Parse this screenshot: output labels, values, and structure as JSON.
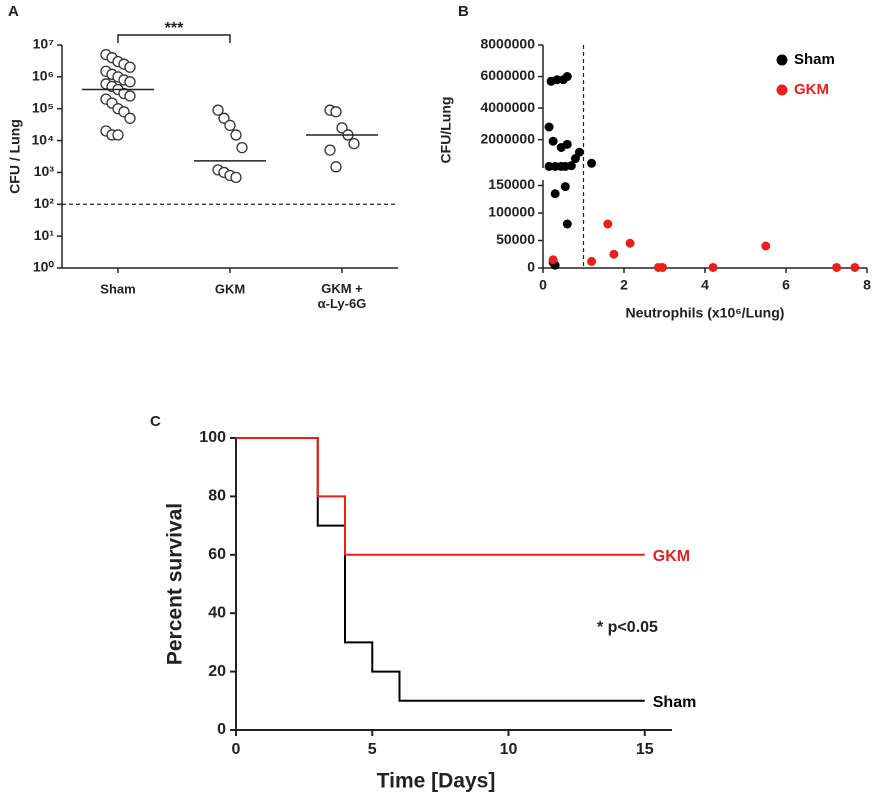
{
  "chart_data": [
    {
      "type": "dot_plot",
      "panel_label": "A",
      "y_label": "CFU / Lung",
      "log_y": true,
      "categories": [
        "Sham",
        "GKM",
        "GKM +\nα-Ly-6G"
      ],
      "groups": [
        [
          5000000,
          4000000,
          3000000,
          2500000,
          2000000,
          1500000,
          1200000,
          1000000,
          800000,
          700000,
          600000,
          500000,
          400000,
          300000,
          250000,
          200000,
          150000,
          100000,
          80000,
          50000,
          20000,
          15000,
          15000
        ],
        [
          90000,
          50000,
          30000,
          15000,
          6000,
          1200,
          1000,
          800,
          700
        ],
        [
          90000,
          80000,
          25000,
          15000,
          8000,
          5000,
          1500
        ]
      ],
      "medians": [
        400000,
        2300,
        15000
      ],
      "hline": 100,
      "significance": {
        "text": "***",
        "groups": [
          "Sham",
          "GKM"
        ]
      },
      "ylim": [
        1,
        10000000
      ],
      "yticks": [
        {
          "value": 1,
          "label": "10⁰"
        },
        {
          "value": 10,
          "label": "10¹"
        },
        {
          "value": 100,
          "label": "10²"
        },
        {
          "value": 1000,
          "label": "10³"
        },
        {
          "value": 10000,
          "label": "10⁴"
        },
        {
          "value": 100000,
          "label": "10⁵"
        },
        {
          "value": 1000000,
          "label": "10⁶"
        },
        {
          "value": 10000000,
          "label": "10⁷"
        }
      ],
      "marker_color": "#333333"
    },
    {
      "type": "scatter",
      "panel_label": "B",
      "x_label": "Neutrophils (x10⁶/Lung)",
      "y_label": "CFU/Lung",
      "series": [
        {
          "name": "Sham",
          "color": "#000000",
          "x": [
            0.2,
            0.35,
            0.5,
            0.6,
            0.15,
            0.25,
            0.45,
            0.6,
            0.9,
            0.15,
            0.3,
            0.45,
            0.55,
            0.7,
            1.2,
            0.8,
            0.3,
            0.55,
            0.6,
            0.25,
            0.3
          ],
          "values": [
            5700000,
            5800000,
            5800000,
            6000000,
            2800000,
            1900000,
            1500000,
            1700000,
            1200000,
            300000,
            300000,
            300000,
            300000,
            350000,
            500000,
            800000,
            135000,
            148000,
            80000,
            10000,
            5000
          ]
        },
        {
          "name": "GKM",
          "color": "#e8201c",
          "x": [
            0.25,
            1.6,
            1.75,
            2.15,
            1.2,
            2.85,
            2.95,
            4.2,
            5.5,
            7.25,
            7.7
          ],
          "values": [
            15000,
            80000,
            25000,
            45000,
            12000,
            1000,
            1000,
            1000,
            40000,
            1000,
            1000
          ]
        }
      ],
      "vline": 1,
      "xlim": [
        0,
        8
      ],
      "xticks": [
        0,
        2,
        4,
        6,
        8
      ],
      "ylim": [
        0,
        8000000
      ],
      "ybreak": [
        160000,
        200000
      ],
      "yticks": [
        0,
        50000,
        100000,
        150000,
        2000000,
        4000000,
        6000000,
        8000000
      ],
      "legend": "upper right"
    },
    {
      "type": "survival",
      "panel_label": "C",
      "x_label": "Time [Days]",
      "y_label": "Percent survival",
      "series": [
        {
          "name": "Sham",
          "color": "#000000",
          "x": [
            0,
            3,
            4,
            5,
            6,
            15
          ],
          "values": [
            100,
            70,
            30,
            20,
            10,
            10
          ]
        },
        {
          "name": "GKM",
          "color": "#e8201c",
          "x": [
            0,
            3,
            4,
            15
          ],
          "values": [
            100,
            80,
            60,
            60
          ]
        }
      ],
      "annotation": "* p<0.05",
      "xlim": [
        0,
        16
      ],
      "xticks": [
        0,
        5,
        10,
        15
      ],
      "ylim": [
        0,
        100
      ],
      "yticks": [
        0,
        20,
        40,
        60,
        80,
        100
      ]
    }
  ]
}
